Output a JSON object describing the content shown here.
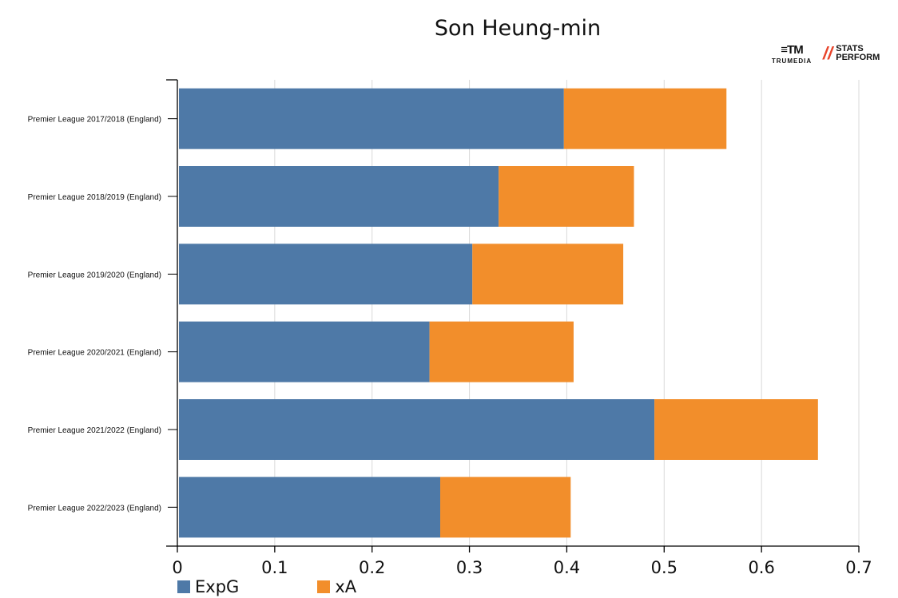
{
  "chart_data": {
    "type": "bar",
    "orientation": "horizontal",
    "stacked": true,
    "title": "Son Heung-min",
    "categories": [
      "Premier League 2017/2018 (England)",
      "Premier League 2018/2019 (England)",
      "Premier League 2019/2020 (England)",
      "Premier League 2020/2021 (England)",
      "Premier League 2021/2022 (England)",
      "Premier League 2022/2023 (England)"
    ],
    "series": [
      {
        "name": "ExpG",
        "color": "#4e79a7",
        "values": [
          0.397,
          0.33,
          0.303,
          0.259,
          0.49,
          0.27
        ]
      },
      {
        "name": "xA",
        "color": "#f28e2b",
        "values": [
          0.167,
          0.139,
          0.155,
          0.148,
          0.168,
          0.134
        ]
      }
    ],
    "xlim": [
      0,
      0.7
    ],
    "xticks": [
      "0",
      "0.1",
      "0.2",
      "0.3",
      "0.4",
      "0.5",
      "0.6",
      "0.7"
    ],
    "grid": true,
    "legend": "bottom-left"
  },
  "logos": {
    "trumedia_mark": "≡TM",
    "trumedia_text": "TRUMEDIA",
    "stats_slash": "//",
    "stats_line1": "STATS",
    "stats_line2": "PERFORM"
  }
}
